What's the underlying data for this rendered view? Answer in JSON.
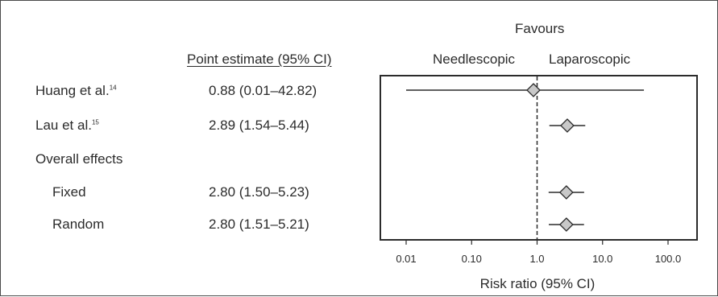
{
  "chart_data": {
    "type": "forest",
    "x_scale": "log",
    "xlim": [
      0.01,
      100
    ],
    "reference_line": 1.0,
    "xlabel": "Risk ratio (95% CI)",
    "xticks": [
      0.01,
      0.1,
      1,
      10,
      100
    ],
    "xtick_labels": [
      "0.01",
      "0.10",
      "1.0",
      "10.0",
      "100.0"
    ],
    "favours_title": "Favours",
    "favours_left": "Needlescopic",
    "favours_right": "Laparoscopic",
    "column_header": "Point estimate (95% CI)",
    "section_label": "Overall effects",
    "studies": [
      {
        "label": "Huang et al.",
        "ref": "14",
        "estimate_text": "0.88 (0.01–42.82)",
        "point": 0.88,
        "lower": 0.01,
        "upper": 42.82
      },
      {
        "label": "Lau et al.",
        "ref": "15",
        "estimate_text": "2.89 (1.54–5.44)",
        "point": 2.89,
        "lower": 1.54,
        "upper": 5.44
      }
    ],
    "overall": [
      {
        "label": "Fixed",
        "estimate_text": "2.80 (1.50–5.23)",
        "point": 2.8,
        "lower": 1.5,
        "upper": 5.23
      },
      {
        "label": "Random",
        "estimate_text": "2.80 (1.51–5.21)",
        "point": 2.8,
        "lower": 1.51,
        "upper": 5.21
      }
    ],
    "colors": {
      "marker_fill": "#c8c8c8",
      "line": "#2b2b2b"
    }
  }
}
